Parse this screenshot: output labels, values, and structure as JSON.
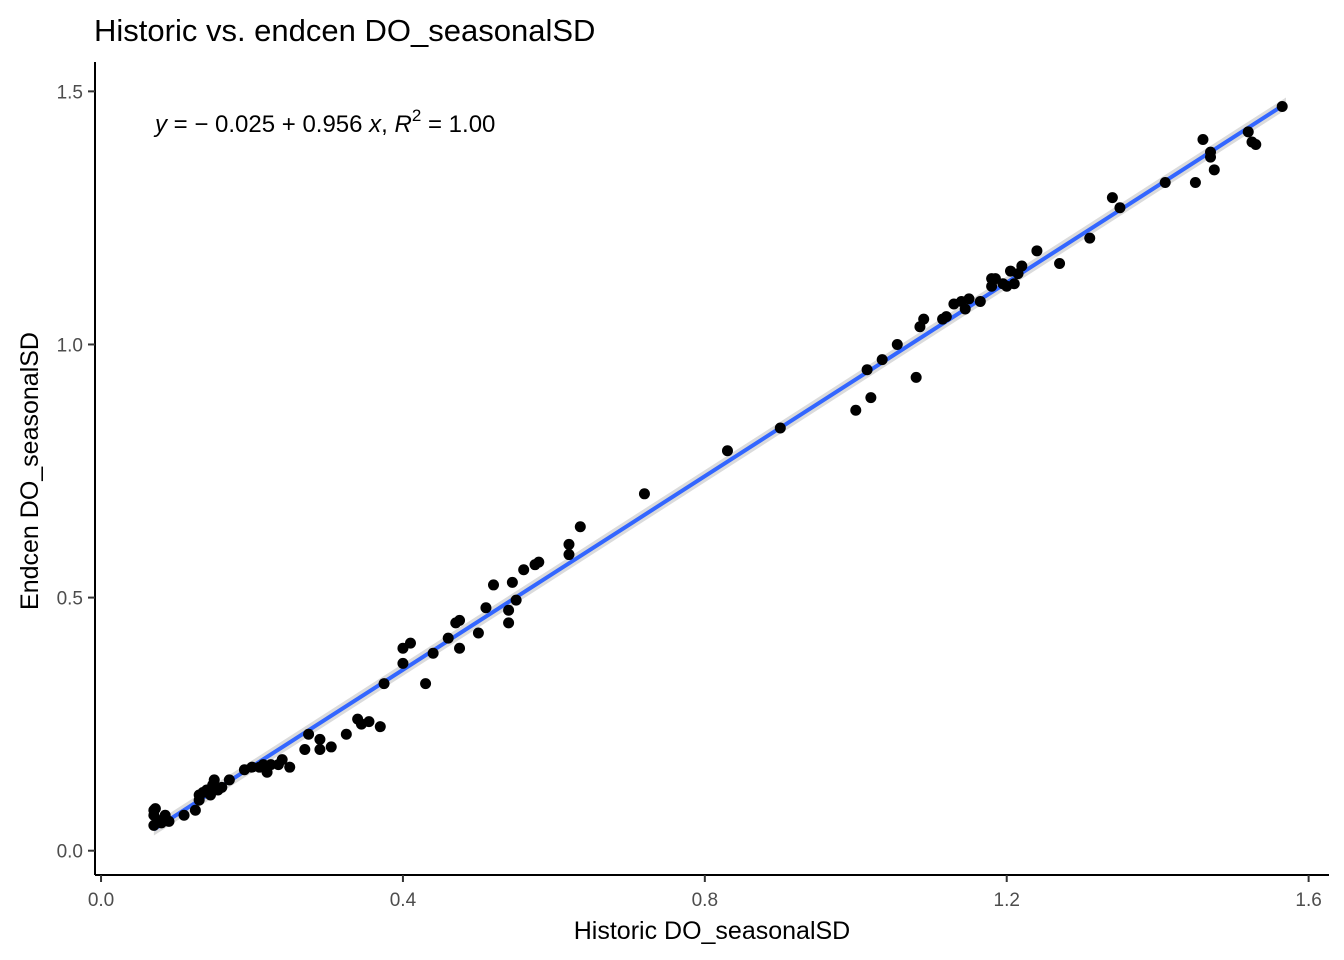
{
  "chart_data": {
    "type": "scatter",
    "title": "Historic vs. endcen DO_seasonalSD",
    "xlabel": "Historic DO_seasonalSD",
    "ylabel": "Endcen DO_seasonalSD",
    "xlim": [
      -0.008,
      1.627
    ],
    "ylim": [
      -0.048,
      1.558
    ],
    "x_ticks": [
      0.0,
      0.4,
      0.8,
      1.2,
      1.6
    ],
    "x_tick_labels": [
      "0.0",
      "0.4",
      "0.8",
      "1.2",
      "1.6"
    ],
    "y_ticks": [
      0.0,
      0.5,
      1.0,
      1.5
    ],
    "y_tick_labels": [
      "0.0",
      "0.5",
      "1.0",
      "1.5"
    ],
    "grid": false,
    "annotation": {
      "equation_parts": [
        "y",
        " = − 0.025 + 0.956 ",
        "x",
        ", ",
        "R",
        "2",
        " = 1.00"
      ]
    },
    "fit": {
      "intercept": -0.025,
      "slope": 0.956,
      "x_range": [
        0.07,
        1.57
      ],
      "color": "#3366FF",
      "band_color": "#999999"
    },
    "point_color": "#000000",
    "points": [
      [
        0.07,
        0.05
      ],
      [
        0.07,
        0.07
      ],
      [
        0.07,
        0.08
      ],
      [
        0.072,
        0.083
      ],
      [
        0.075,
        0.06
      ],
      [
        0.08,
        0.055
      ],
      [
        0.085,
        0.07
      ],
      [
        0.09,
        0.058
      ],
      [
        0.11,
        0.07
      ],
      [
        0.125,
        0.08
      ],
      [
        0.13,
        0.1
      ],
      [
        0.13,
        0.11
      ],
      [
        0.135,
        0.115
      ],
      [
        0.14,
        0.12
      ],
      [
        0.145,
        0.11
      ],
      [
        0.148,
        0.13
      ],
      [
        0.15,
        0.14
      ],
      [
        0.155,
        0.12
      ],
      [
        0.16,
        0.125
      ],
      [
        0.17,
        0.14
      ],
      [
        0.19,
        0.16
      ],
      [
        0.2,
        0.165
      ],
      [
        0.21,
        0.165
      ],
      [
        0.215,
        0.17
      ],
      [
        0.22,
        0.155
      ],
      [
        0.225,
        0.17
      ],
      [
        0.235,
        0.17
      ],
      [
        0.24,
        0.18
      ],
      [
        0.25,
        0.165
      ],
      [
        0.27,
        0.2
      ],
      [
        0.275,
        0.23
      ],
      [
        0.29,
        0.2
      ],
      [
        0.29,
        0.22
      ],
      [
        0.305,
        0.205
      ],
      [
        0.325,
        0.23
      ],
      [
        0.34,
        0.26
      ],
      [
        0.345,
        0.25
      ],
      [
        0.355,
        0.255
      ],
      [
        0.37,
        0.245
      ],
      [
        0.375,
        0.33
      ],
      [
        0.4,
        0.4
      ],
      [
        0.4,
        0.37
      ],
      [
        0.41,
        0.41
      ],
      [
        0.43,
        0.33
      ],
      [
        0.44,
        0.39
      ],
      [
        0.46,
        0.42
      ],
      [
        0.47,
        0.45
      ],
      [
        0.475,
        0.455
      ],
      [
        0.475,
        0.4
      ],
      [
        0.5,
        0.43
      ],
      [
        0.51,
        0.48
      ],
      [
        0.52,
        0.525
      ],
      [
        0.54,
        0.45
      ],
      [
        0.54,
        0.475
      ],
      [
        0.545,
        0.53
      ],
      [
        0.55,
        0.495
      ],
      [
        0.56,
        0.555
      ],
      [
        0.575,
        0.565
      ],
      [
        0.58,
        0.57
      ],
      [
        0.62,
        0.585
      ],
      [
        0.62,
        0.605
      ],
      [
        0.635,
        0.64
      ],
      [
        0.72,
        0.705
      ],
      [
        0.83,
        0.79
      ],
      [
        0.9,
        0.835
      ],
      [
        1.0,
        0.87
      ],
      [
        1.015,
        0.95
      ],
      [
        1.02,
        0.895
      ],
      [
        1.035,
        0.97
      ],
      [
        1.055,
        1.0
      ],
      [
        1.08,
        0.935
      ],
      [
        1.085,
        1.035
      ],
      [
        1.09,
        1.05
      ],
      [
        1.115,
        1.05
      ],
      [
        1.12,
        1.055
      ],
      [
        1.13,
        1.08
      ],
      [
        1.14,
        1.085
      ],
      [
        1.145,
        1.07
      ],
      [
        1.15,
        1.09
      ],
      [
        1.165,
        1.085
      ],
      [
        1.18,
        1.13
      ],
      [
        1.18,
        1.115
      ],
      [
        1.185,
        1.13
      ],
      [
        1.195,
        1.12
      ],
      [
        1.2,
        1.115
      ],
      [
        1.205,
        1.145
      ],
      [
        1.21,
        1.12
      ],
      [
        1.215,
        1.14
      ],
      [
        1.22,
        1.155
      ],
      [
        1.24,
        1.185
      ],
      [
        1.27,
        1.16
      ],
      [
        1.31,
        1.21
      ],
      [
        1.34,
        1.29
      ],
      [
        1.35,
        1.27
      ],
      [
        1.41,
        1.32
      ],
      [
        1.45,
        1.32
      ],
      [
        1.46,
        1.405
      ],
      [
        1.47,
        1.37
      ],
      [
        1.47,
        1.38
      ],
      [
        1.475,
        1.345
      ],
      [
        1.52,
        1.42
      ],
      [
        1.525,
        1.4
      ],
      [
        1.53,
        1.395
      ],
      [
        1.565,
        1.47
      ]
    ]
  }
}
